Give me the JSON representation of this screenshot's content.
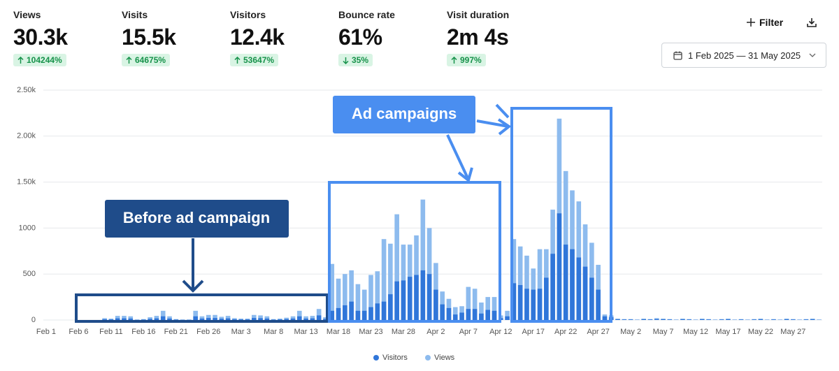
{
  "metrics": [
    {
      "label": "Views",
      "value": "30.3k",
      "change": "104244%",
      "direction": "up"
    },
    {
      "label": "Visits",
      "value": "15.5k",
      "change": "64675%",
      "direction": "up"
    },
    {
      "label": "Visitors",
      "value": "12.4k",
      "change": "53647%",
      "direction": "up"
    },
    {
      "label": "Bounce rate",
      "value": "61%",
      "change": "35%",
      "direction": "down"
    },
    {
      "label": "Visit duration",
      "value": "2m 4s",
      "change": "997%",
      "direction": "up"
    }
  ],
  "toolbar": {
    "filter": "Filter",
    "date_range": "1 Feb 2025 — 31 May 2025"
  },
  "chart_data": {
    "type": "bar",
    "grid": true,
    "legend": "bottom",
    "ylim": [
      0,
      2500
    ],
    "yticks": [
      0,
      500,
      1000,
      {
        "value": 1500,
        "label": "1.50k"
      },
      {
        "value": 2000,
        "label": "2.00k"
      },
      {
        "value": 2500,
        "label": "2.50k"
      }
    ],
    "categories": [
      "Feb 1",
      null,
      null,
      null,
      null,
      "Feb 6",
      null,
      null,
      null,
      null,
      "Feb 11",
      null,
      null,
      null,
      null,
      "Feb 16",
      null,
      null,
      null,
      null,
      "Feb 21",
      null,
      null,
      null,
      null,
      "Feb 26",
      null,
      null,
      null,
      null,
      "Mar 3",
      null,
      null,
      null,
      null,
      "Mar 8",
      null,
      null,
      null,
      null,
      "Mar 13",
      null,
      null,
      null,
      null,
      "Mar 18",
      null,
      null,
      null,
      null,
      "Mar 23",
      null,
      null,
      null,
      null,
      "Mar 28",
      null,
      null,
      null,
      null,
      "Apr 2",
      null,
      null,
      null,
      null,
      "Apr 7",
      null,
      null,
      null,
      null,
      "Apr 12",
      null,
      null,
      null,
      null,
      "Apr 17",
      null,
      null,
      null,
      null,
      "Apr 22",
      null,
      null,
      null,
      null,
      "Apr 27",
      null,
      null,
      null,
      null,
      "May 2",
      null,
      null,
      null,
      null,
      "May 7",
      null,
      null,
      null,
      null,
      "May 12",
      null,
      null,
      null,
      null,
      "May 17",
      null,
      null,
      null,
      null,
      "May 22",
      null,
      null,
      null,
      null,
      "May 27",
      null,
      null,
      null,
      null
    ],
    "series": [
      {
        "name": "Visitors",
        "color": "#3076d9",
        "values": [
          0,
          0,
          0,
          0,
          0,
          0,
          0,
          0,
          0,
          8,
          6,
          18,
          18,
          16,
          2,
          4,
          12,
          18,
          40,
          16,
          4,
          2,
          2,
          40,
          16,
          22,
          22,
          14,
          18,
          8,
          6,
          6,
          22,
          20,
          16,
          4,
          6,
          10,
          16,
          40,
          16,
          18,
          50,
          12,
          100,
          130,
          160,
          200,
          100,
          100,
          140,
          180,
          200,
          280,
          420,
          430,
          470,
          490,
          540,
          500,
          330,
          170,
          130,
          60,
          80,
          120,
          120,
          70,
          110,
          100,
          20,
          40,
          400,
          380,
          340,
          330,
          340,
          460,
          720,
          1160,
          820,
          770,
          680,
          580,
          460,
          330,
          40,
          30,
          8,
          6,
          6,
          2,
          8,
          6,
          10,
          8,
          6,
          2,
          8,
          6,
          2,
          8,
          6,
          2,
          6,
          8,
          2,
          6,
          2,
          6,
          8,
          2,
          6,
          2,
          8,
          6,
          2,
          6,
          8,
          2
        ]
      },
      {
        "name": "Views",
        "color": "#8dbbee",
        "values": [
          0,
          0,
          0,
          0,
          0,
          0,
          0,
          0,
          0,
          20,
          15,
          45,
          45,
          40,
          5,
          10,
          30,
          45,
          100,
          40,
          10,
          5,
          5,
          100,
          40,
          55,
          55,
          35,
          45,
          20,
          15,
          15,
          55,
          50,
          40,
          10,
          15,
          25,
          40,
          100,
          40,
          45,
          120,
          30,
          610,
          450,
          500,
          540,
          390,
          330,
          490,
          530,
          880,
          830,
          1150,
          820,
          820,
          920,
          1310,
          1000,
          620,
          310,
          230,
          140,
          150,
          360,
          340,
          190,
          250,
          250,
          50,
          100,
          880,
          800,
          700,
          560,
          770,
          770,
          1200,
          2190,
          1620,
          1410,
          1290,
          1040,
          840,
          600,
          60,
          50,
          15,
          10,
          10,
          5,
          15,
          10,
          20,
          15,
          10,
          5,
          15,
          10,
          5,
          15,
          10,
          5,
          10,
          15,
          5,
          10,
          5,
          10,
          15,
          5,
          10,
          5,
          15,
          10,
          5,
          10,
          15,
          5
        ]
      }
    ],
    "annotations": [
      "Ad campaigns",
      "Before ad campaign"
    ]
  }
}
